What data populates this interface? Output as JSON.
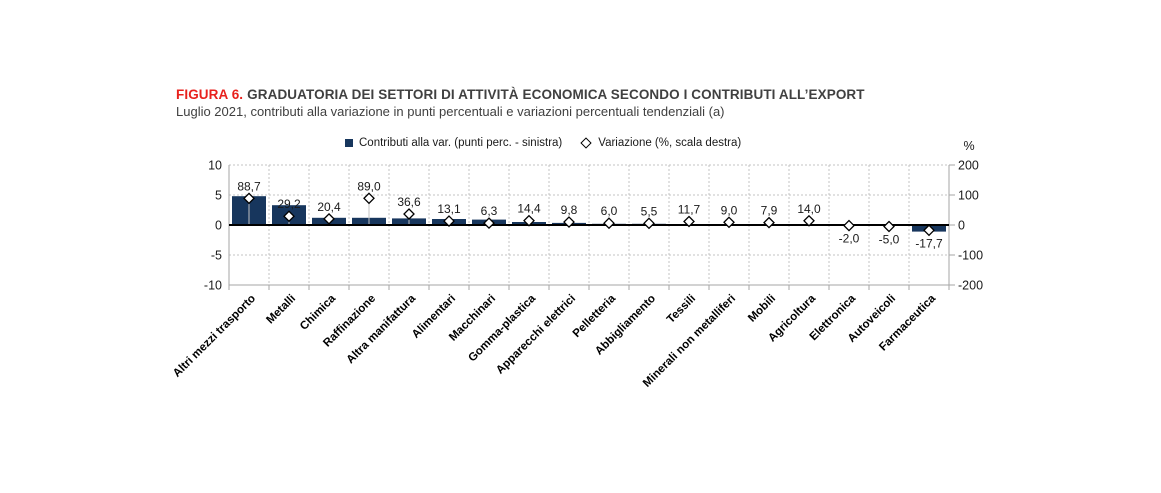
{
  "figure": {
    "label": "FIGURA 6.",
    "title": "GRADUATORIA DEI SETTORI DI ATTIVITÀ ECONOMICA SECONDO I CONTRIBUTI ALL’EXPORT",
    "subtitle": "Luglio 2021, contributi alla variazione in punti percentuali e variazioni percentuali tendenziali (a)"
  },
  "legend": {
    "bars": "Contributi alla var. (punti perc. - sinistra)",
    "variation": "Variazione (%, scala destra)"
  },
  "chart_data": {
    "type": "bar",
    "subtype": "bar + diamond scatter combo, dual axis",
    "categories": [
      "Altri mezzi trasporto",
      "Metalli",
      "Chimica",
      "Raffinazione",
      "Altra manifattura",
      "Alimentari",
      "Macchinari",
      "Gomma-plastica",
      "Apparecchi elettrici",
      "Pelletteria",
      "Abbigliamento",
      "Tessili",
      "Minerali non metalliferi",
      "Mobili",
      "Agricoltura",
      "Elettronica",
      "Autoveicoli",
      "Farmaceutica"
    ],
    "series": [
      {
        "name": "Contributi alla var. (punti perc. - sinistra)",
        "type": "bar",
        "axis": "left",
        "values": [
          4.8,
          3.3,
          1.2,
          1.2,
          1.1,
          1.0,
          0.9,
          0.5,
          0.35,
          0.2,
          0.2,
          0.15,
          0.15,
          0.15,
          0.15,
          -0.05,
          -0.05,
          -1.1
        ]
      },
      {
        "name": "Variazione (%, scala destra)",
        "type": "scatter-diamond",
        "axis": "right",
        "values": [
          88.7,
          29.2,
          20.4,
          89.0,
          36.6,
          13.1,
          6.3,
          14.4,
          9.8,
          6.0,
          5.5,
          11.7,
          9.0,
          7.9,
          14.0,
          -2.0,
          -5.0,
          -17.7
        ],
        "labels": [
          "88,7",
          "29,2",
          "20,4",
          "89,0",
          "36,6",
          "13,1",
          "6,3",
          "14,4",
          "9,8",
          "6,0",
          "5,5",
          "11,7",
          "9,0",
          "7,9",
          "14,0",
          "-2,0",
          "-5,0",
          "-17,7"
        ]
      }
    ],
    "left_axis": {
      "range": [
        -10,
        10
      ],
      "ticks": [
        10,
        5,
        0,
        -5,
        -10
      ],
      "tick_labels": [
        "10",
        "5",
        "0",
        "-5",
        "-10"
      ]
    },
    "right_axis": {
      "range": [
        -200,
        200
      ],
      "ticks": [
        200,
        100,
        0,
        -100,
        -200
      ],
      "tick_labels": [
        "200",
        "100",
        "0",
        "-100",
        "-200"
      ],
      "unit": "%"
    },
    "grid": "dashed horizontal and vertical gridlines, solid black zero line",
    "legend_position": "top center",
    "colors": {
      "bar": "#17365d",
      "diamond_fill": "#ffffff",
      "diamond_stroke": "#000000",
      "grid": "#c3c3c3",
      "border": "#a6a6a6",
      "zero_line": "#000000",
      "title_accent": "#e8211d",
      "text": "#1a1a1a"
    }
  }
}
